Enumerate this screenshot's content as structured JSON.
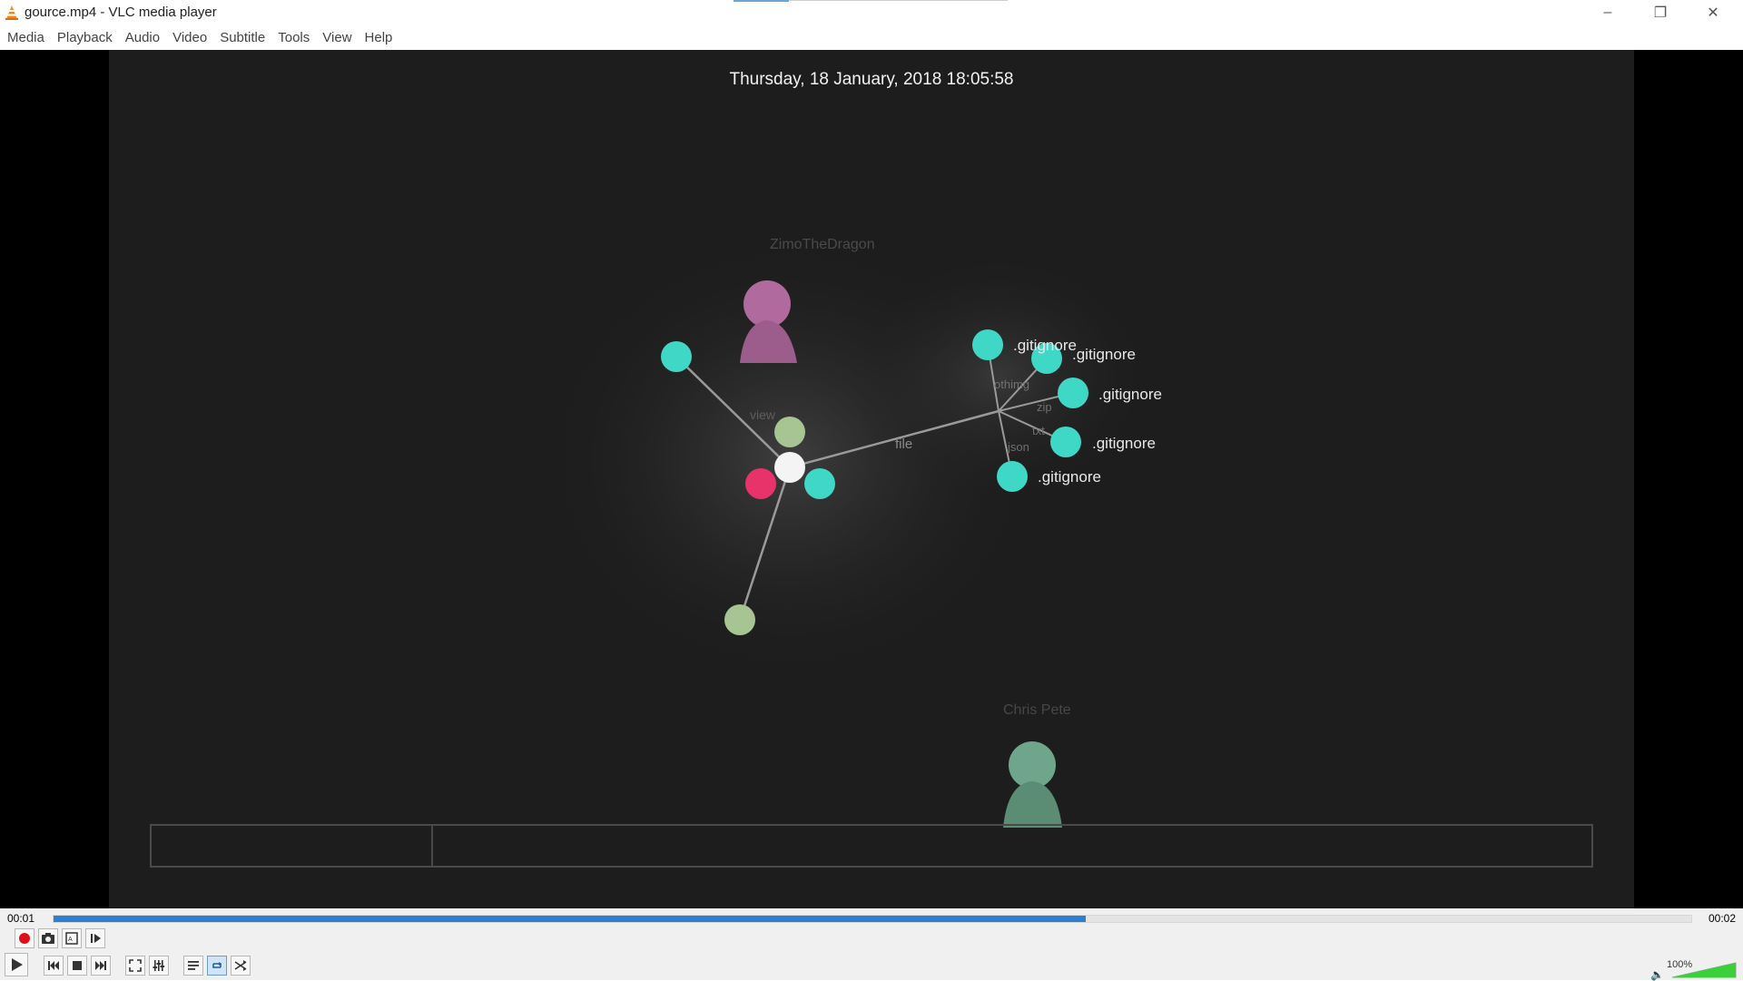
{
  "window": {
    "title": "gource.mp4 - VLC media player",
    "controls": {
      "minimize": "–",
      "maximize": "❐",
      "close": "✕"
    }
  },
  "menu": [
    "Media",
    "Playback",
    "Audio",
    "Video",
    "Subtitle",
    "Tools",
    "View",
    "Help"
  ],
  "video": {
    "date": "Thursday, 18 January, 2018 18:05:58",
    "users": [
      "ZimoTheDragon",
      "Chris Pete"
    ],
    "dirs": [
      "view",
      "file",
      "othimg",
      "zip",
      "txt",
      "json"
    ],
    "files": [
      ".gitignore",
      ".gitignore",
      ".gitignore",
      ".gitignore",
      ".gitignore"
    ]
  },
  "playback": {
    "elapsed": "00:01",
    "total": "00:02",
    "progress_fraction": 0.63,
    "volume": "100%",
    "volume_fraction": 1.0
  },
  "icons": {
    "record": "record-icon",
    "snapshot": "snapshot-icon",
    "loop_ab": "loop-ab-icon",
    "frame": "frame-by-frame-icon",
    "play": "play-icon",
    "prev": "previous-icon",
    "stop": "stop-icon",
    "next": "next-icon",
    "fullscreen": "fullscreen-icon",
    "extended": "extended-settings-icon",
    "playlist": "playlist-icon",
    "loop": "loop-icon",
    "shuffle": "shuffle-icon"
  },
  "colors": {
    "accent": "#2f7fd1",
    "file_node": "#3fd7c6",
    "user_pink": "#b06a9e",
    "user_green": "#6fa58a",
    "record": "#e0101a"
  }
}
